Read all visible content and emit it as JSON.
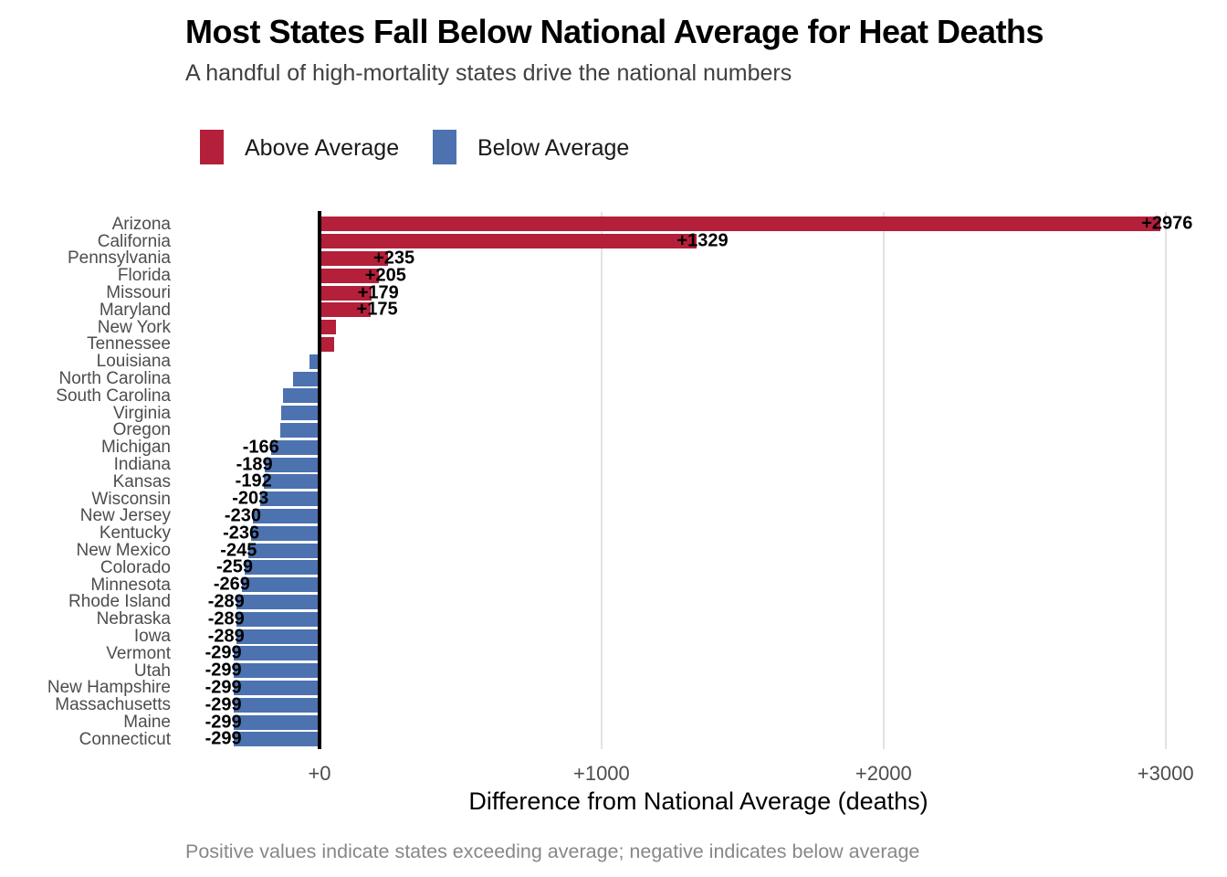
{
  "header": {
    "title": "Most States Fall Below National Average for Heat Deaths",
    "subtitle": "A handful of high-mortality states drive the national numbers"
  },
  "legend": {
    "items": [
      {
        "label": "Above Average",
        "color": "#B41F3A"
      },
      {
        "label": "Below Average",
        "color": "#4C72B0"
      }
    ]
  },
  "chart_data": {
    "type": "bar",
    "orientation": "horizontal",
    "title": "Most States Fall Below National Average for Heat Deaths",
    "subtitle": "A handful of high-mortality states drive the national numbers",
    "xlabel": "Difference from National Average (deaths)",
    "caption": "Positive values indicate states exceeding average; negative indicates below average",
    "xlim": [
      -500,
      3200
    ],
    "grid": "vertical-only",
    "legend_position": "top-left",
    "x_ticks": [
      {
        "value": 0,
        "label": "+0"
      },
      {
        "value": 1000,
        "label": "+1000"
      },
      {
        "value": 2000,
        "label": "+2000"
      },
      {
        "value": 3000,
        "label": "+3000"
      }
    ],
    "colors": {
      "above": "#B41F3A",
      "below": "#4C72B0",
      "gridline": "#E2E2E2",
      "zero_line": "#000000"
    },
    "states": [
      {
        "name": "Arizona",
        "value": 2976,
        "label": "+2976",
        "group": "above"
      },
      {
        "name": "California",
        "value": 1329,
        "label": "+1329",
        "group": "above"
      },
      {
        "name": "Pennsylvania",
        "value": 235,
        "label": "+235",
        "group": "above"
      },
      {
        "name": "Florida",
        "value": 205,
        "label": "+205",
        "group": "above"
      },
      {
        "name": "Missouri",
        "value": 179,
        "label": "+179",
        "group": "above"
      },
      {
        "name": "Maryland",
        "value": 175,
        "label": "+175",
        "group": "above"
      },
      {
        "name": "New York",
        "value": 52,
        "label": "",
        "group": "above"
      },
      {
        "name": "Tennessee",
        "value": 45,
        "label": "",
        "group": "above"
      },
      {
        "name": "Louisiana",
        "value": -30,
        "label": "",
        "group": "below"
      },
      {
        "name": "North Carolina",
        "value": -88,
        "label": "",
        "group": "below"
      },
      {
        "name": "South Carolina",
        "value": -122,
        "label": "",
        "group": "below"
      },
      {
        "name": "Virginia",
        "value": -131,
        "label": "",
        "group": "below"
      },
      {
        "name": "Oregon",
        "value": -133,
        "label": "",
        "group": "below"
      },
      {
        "name": "Michigan",
        "value": -166,
        "label": "-166",
        "group": "below"
      },
      {
        "name": "Indiana",
        "value": -189,
        "label": "-189",
        "group": "below"
      },
      {
        "name": "Kansas",
        "value": -192,
        "label": "-192",
        "group": "below"
      },
      {
        "name": "Wisconsin",
        "value": -203,
        "label": "-203",
        "group": "below"
      },
      {
        "name": "New Jersey",
        "value": -230,
        "label": "-230",
        "group": "below"
      },
      {
        "name": "Kentucky",
        "value": -236,
        "label": "-236",
        "group": "below"
      },
      {
        "name": "New Mexico",
        "value": -245,
        "label": "-245",
        "group": "below"
      },
      {
        "name": "Colorado",
        "value": -259,
        "label": "-259",
        "group": "below"
      },
      {
        "name": "Minnesota",
        "value": -269,
        "label": "-269",
        "group": "below"
      },
      {
        "name": "Rhode Island",
        "value": -289,
        "label": "-289",
        "group": "below"
      },
      {
        "name": "Nebraska",
        "value": -289,
        "label": "-289",
        "group": "below"
      },
      {
        "name": "Iowa",
        "value": -289,
        "label": "-289",
        "group": "below"
      },
      {
        "name": "Vermont",
        "value": -299,
        "label": "-299",
        "group": "below"
      },
      {
        "name": "Utah",
        "value": -299,
        "label": "-299",
        "group": "below"
      },
      {
        "name": "New Hampshire",
        "value": -299,
        "label": "-299",
        "group": "below"
      },
      {
        "name": "Massachusetts",
        "value": -299,
        "label": "-299",
        "group": "below"
      },
      {
        "name": "Maine",
        "value": -299,
        "label": "-299",
        "group": "below"
      },
      {
        "name": "Connecticut",
        "value": -299,
        "label": "-299",
        "group": "below"
      }
    ]
  }
}
